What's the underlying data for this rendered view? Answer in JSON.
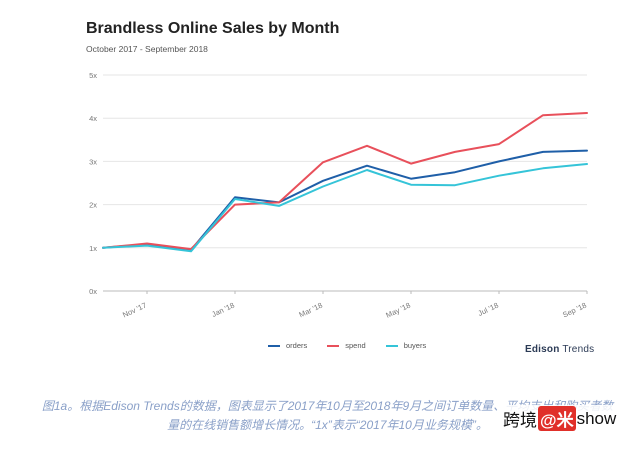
{
  "chart_data": {
    "type": "line",
    "title": "Brandless Online Sales by Month",
    "subtitle": "October 2017 - September 2018",
    "x": [
      "Oct '17",
      "Nov '17",
      "Dec '17",
      "Jan '18",
      "Feb '18",
      "Mar '18",
      "Apr '18",
      "May '18",
      "Jun '18",
      "Jul '18",
      "Aug '18",
      "Sep '18"
    ],
    "x_tick_labels": [
      "Nov '17",
      "Jan '18",
      "Mar '18",
      "May '18",
      "Jul '18",
      "Sep '18"
    ],
    "y_tick_labels": [
      "0x",
      "1x",
      "2x",
      "3x",
      "4x",
      "5x"
    ],
    "ylim": [
      0,
      5
    ],
    "grid": true,
    "legend_position": "bottom",
    "series": [
      {
        "name": "orders",
        "color": "#1f5fa8",
        "values": [
          1.0,
          1.08,
          0.95,
          2.17,
          2.05,
          2.55,
          2.9,
          2.6,
          2.75,
          3.0,
          3.22,
          3.25
        ]
      },
      {
        "name": "spend",
        "color": "#e8505b",
        "values": [
          1.0,
          1.1,
          0.97,
          2.0,
          2.05,
          2.98,
          3.36,
          2.95,
          3.22,
          3.4,
          4.07,
          4.12
        ]
      },
      {
        "name": "buyers",
        "color": "#35c4d8",
        "values": [
          1.0,
          1.05,
          0.92,
          2.13,
          1.97,
          2.42,
          2.8,
          2.46,
          2.45,
          2.67,
          2.84,
          2.94
        ]
      }
    ]
  },
  "brand": {
    "name_bold": "Edison",
    "name_rest": " Trends"
  },
  "caption": "图1a。根据Edison Trends的数据，图表显示了2017年10月至2018年9月之间订单数量、平均支出和购买者数量的在线销售额增长情况。“1x”表示“2017年10月业务规模”。",
  "watermark": {
    "left": "跨境",
    "at": "@",
    "mid": "米",
    "right": "show"
  }
}
